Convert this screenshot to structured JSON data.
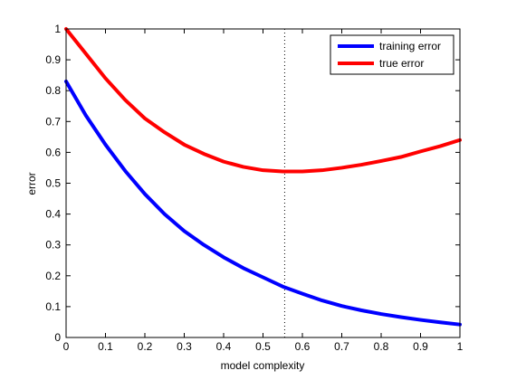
{
  "chart_data": {
    "type": "line",
    "title": "",
    "xlabel": "model complexity",
    "ylabel": "error",
    "xlim": [
      0,
      1
    ],
    "ylim": [
      0,
      1
    ],
    "grid": false,
    "legend_position": "top-right",
    "x_ticks": [
      0,
      0.1,
      0.2,
      0.3,
      0.4,
      0.5,
      0.6,
      0.7,
      0.8,
      0.9,
      1
    ],
    "x_tick_labels": [
      "0",
      "0.1",
      "0.2",
      "0.3",
      "0.4",
      "0.5",
      "0.6",
      "0.7",
      "0.8",
      "0.9",
      "1"
    ],
    "y_ticks": [
      0,
      0.1,
      0.2,
      0.3,
      0.4,
      0.5,
      0.6,
      0.7,
      0.8,
      0.9,
      1
    ],
    "y_tick_labels": [
      "0",
      "0.1",
      "0.2",
      "0.3",
      "0.4",
      "0.5",
      "0.6",
      "0.7",
      "0.8",
      "0.9",
      "1"
    ],
    "x": [
      0,
      0.05,
      0.1,
      0.15,
      0.2,
      0.25,
      0.3,
      0.35,
      0.4,
      0.45,
      0.5,
      0.55,
      0.6,
      0.65,
      0.7,
      0.75,
      0.8,
      0.85,
      0.9,
      0.95,
      1
    ],
    "series": [
      {
        "name": "training error",
        "color": "#0000ff",
        "values": [
          0.83,
          0.72,
          0.625,
          0.54,
          0.465,
          0.4,
          0.345,
          0.3,
          0.26,
          0.225,
          0.195,
          0.165,
          0.142,
          0.12,
          0.102,
          0.088,
          0.076,
          0.066,
          0.057,
          0.049,
          0.042
        ]
      },
      {
        "name": "true error",
        "color": "#ff0000",
        "values": [
          1.0,
          0.92,
          0.84,
          0.77,
          0.71,
          0.665,
          0.625,
          0.595,
          0.57,
          0.553,
          0.542,
          0.538,
          0.538,
          0.542,
          0.55,
          0.56,
          0.572,
          0.585,
          0.603,
          0.62,
          0.64
        ]
      }
    ],
    "annotations": [
      {
        "type": "vertical-dotted-line",
        "x": 0.555,
        "color": "#000000"
      }
    ]
  }
}
